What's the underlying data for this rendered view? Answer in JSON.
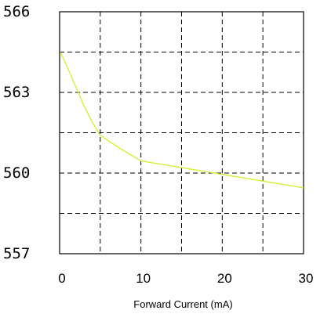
{
  "chart_data": {
    "type": "line",
    "title": "",
    "xlabel": "Forward Current (mA)",
    "ylabel": "",
    "xlim": [
      0,
      30
    ],
    "ylim": [
      557,
      566
    ],
    "grid": true,
    "grid_style": "dashed",
    "x_ticks": [
      0,
      10,
      20,
      30
    ],
    "x_tick_labels": [
      "0",
      "10",
      "20",
      "30"
    ],
    "y_ticks": [
      557,
      560,
      563,
      566
    ],
    "y_tick_labels": [
      "557",
      "560",
      "563",
      "566"
    ],
    "x_gridlines": [
      5,
      10,
      15,
      20,
      25
    ],
    "y_gridlines": [
      558.5,
      560,
      561.5,
      563,
      564.5
    ],
    "series": [
      {
        "color": "#d4ef3a",
        "x": [
          0.1,
          1,
          2,
          3,
          4,
          5,
          7.5,
          10,
          15,
          20,
          25,
          30
        ],
        "y": [
          564.5,
          563.9,
          563.2,
          562.5,
          561.9,
          561.4,
          560.9,
          560.45,
          560.2,
          559.95,
          559.7,
          559.45
        ]
      }
    ]
  }
}
